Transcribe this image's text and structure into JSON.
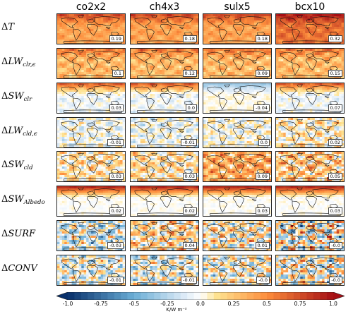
{
  "figure": {
    "columns": [
      "co2x2",
      "ch4x3",
      "sulx5",
      "bcx10"
    ],
    "rows": [
      {
        "base": "T",
        "sub": "",
        "italic_base": false
      },
      {
        "base": "LW",
        "sub": "clr,ϵ",
        "italic_base": false
      },
      {
        "base": "SW",
        "sub": "clr",
        "italic_base": false
      },
      {
        "base": "LW",
        "sub": "cld,ϵ",
        "italic_base": false
      },
      {
        "base": "SW",
        "sub": "cld",
        "italic_base": false
      },
      {
        "base": "SW",
        "sub": "Albedo",
        "italic_base": false
      },
      {
        "base": "SURF",
        "sub": "",
        "italic_base": true
      },
      {
        "base": "CONV",
        "sub": "",
        "italic_base": true
      }
    ],
    "delta_symbol": "Δ",
    "panel_values": [
      [
        "0.19",
        "0.18",
        "0.18",
        "0.32"
      ],
      [
        "0.1",
        "0.12",
        "0.09",
        "0.15"
      ],
      [
        "0.03",
        "0.0",
        "-0.04",
        "0.07"
      ],
      [
        "-0.01",
        "-0.01",
        "0.0",
        "0.02"
      ],
      [
        "0.03",
        "0.03",
        "0.09",
        "0.05"
      ],
      [
        "0.02",
        "0.02",
        "0.03",
        "0.03"
      ],
      [
        "-0.03",
        "0.04",
        "0.01",
        "-0.0"
      ],
      [
        "-0.01",
        "-0.01",
        "-0.0",
        "-0.0"
      ]
    ],
    "colors": {
      "neg_strong": "#08306b",
      "neg_mid": "#6baed6",
      "neg_light": "#deebf7",
      "zero": "#ffffff",
      "pos_light": "#fee391",
      "pos_mid": "#fd8d3c",
      "pos_strong": "#a50f15",
      "coast": "#111111"
    },
    "colorbar": {
      "ticks": [
        "-1.0",
        "-0.75",
        "-0.5",
        "-0.25",
        "0.0",
        "0.25",
        "0.5",
        "0.75",
        "1.0"
      ],
      "range": [
        -1.0,
        1.0
      ],
      "unit": "K/W m⁻²"
    }
  }
}
